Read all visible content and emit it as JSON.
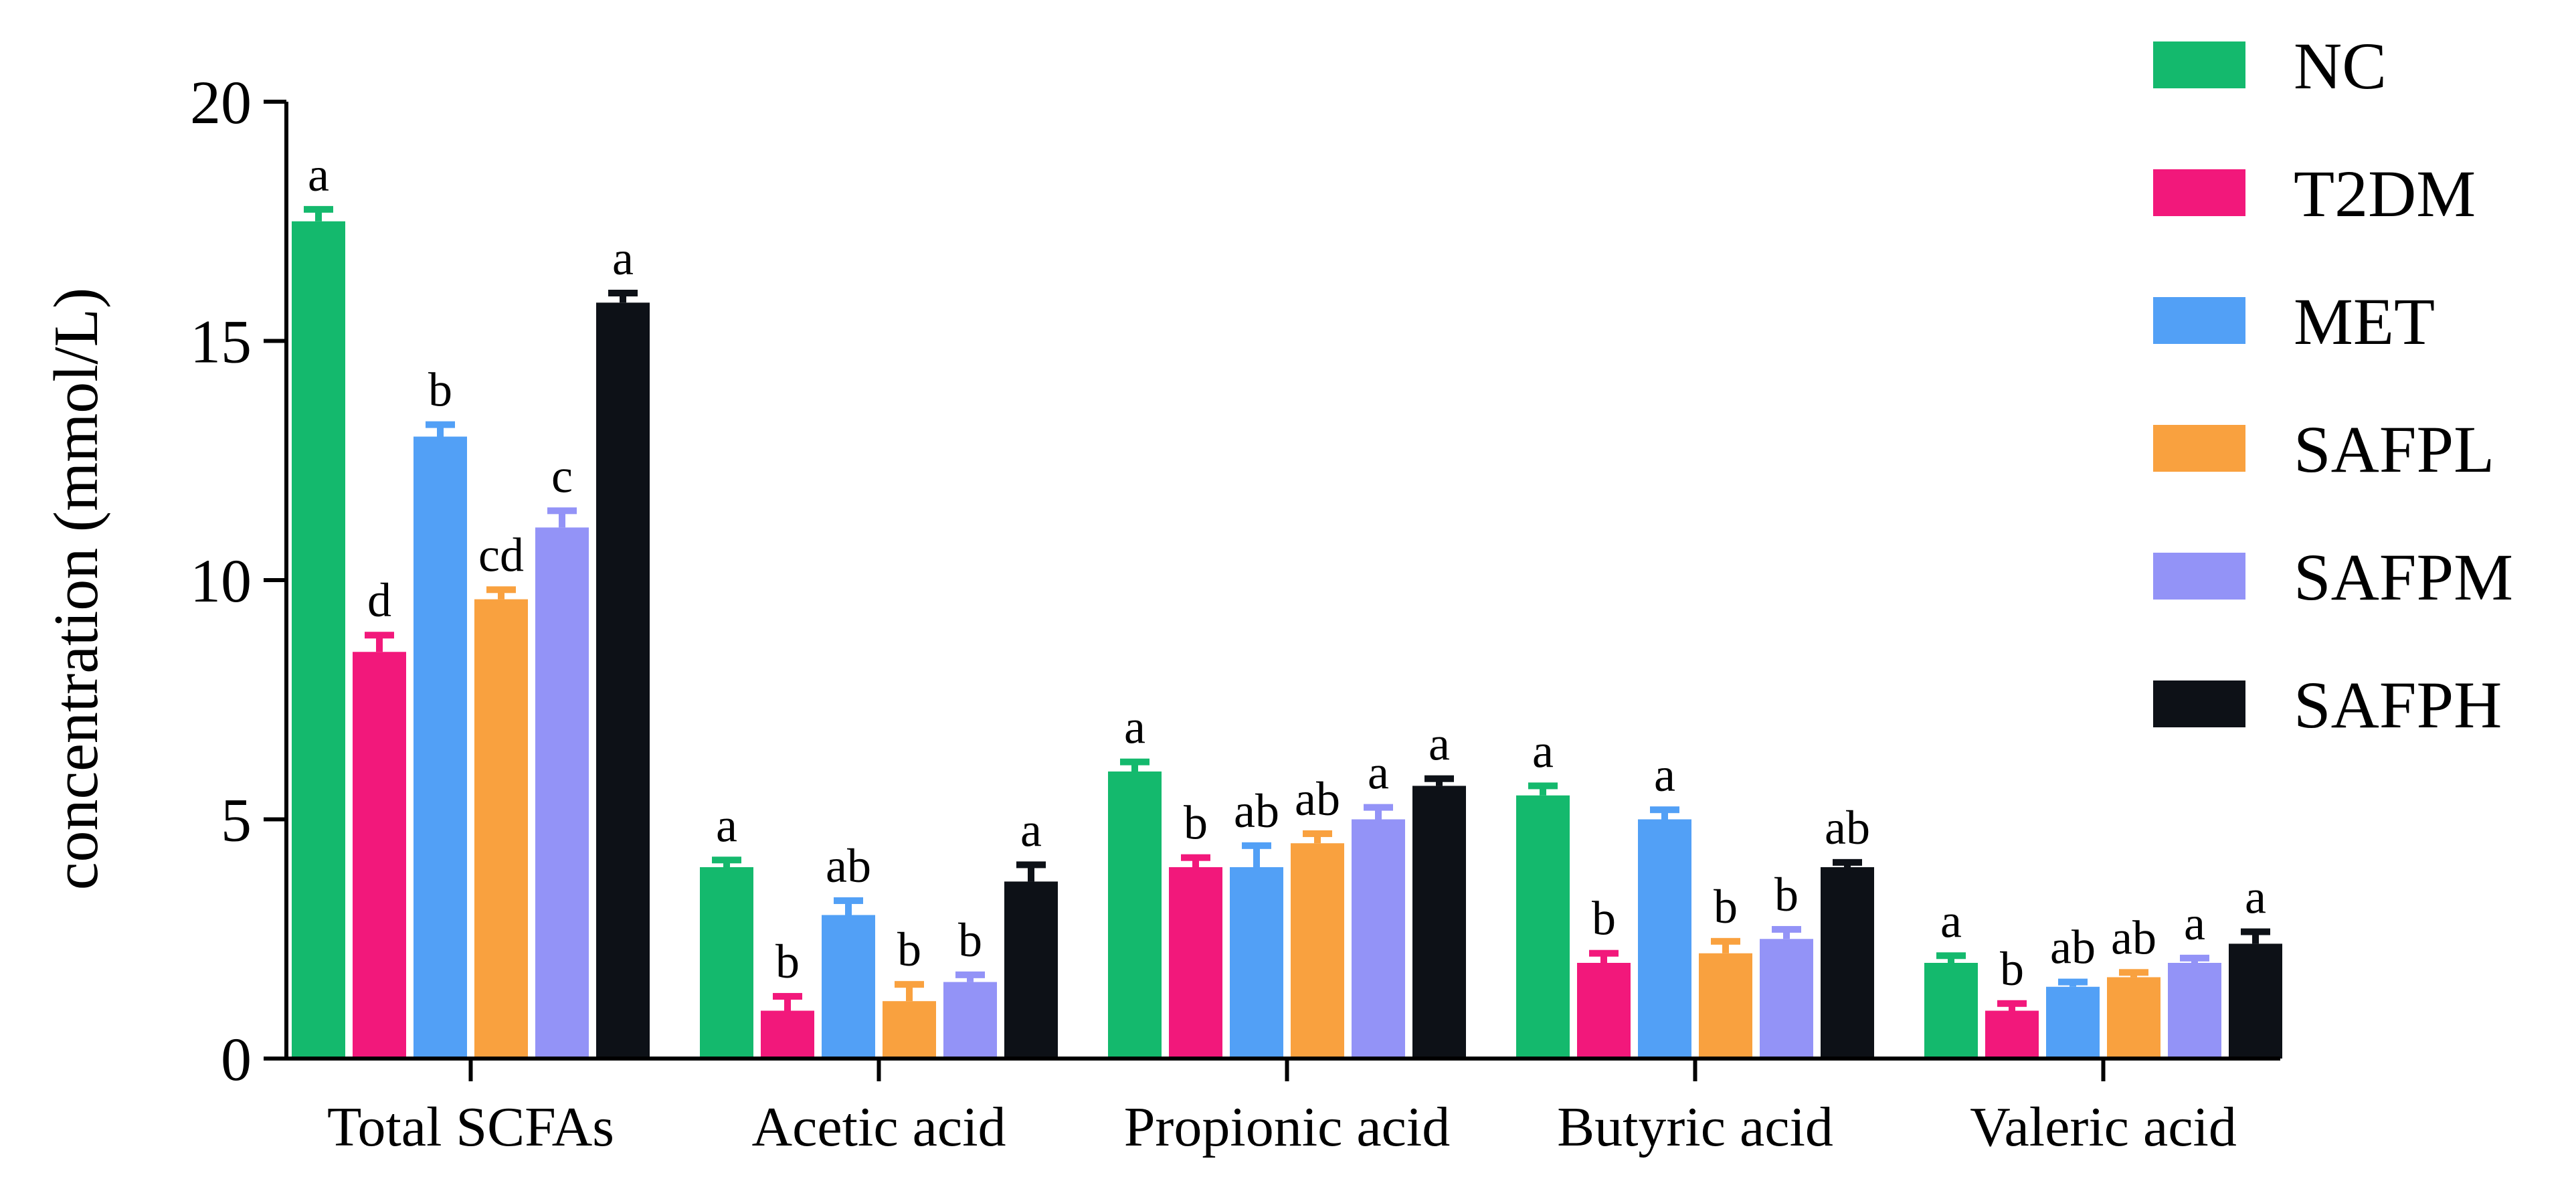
{
  "chart_data": {
    "type": "bar",
    "title": "",
    "xlabel": "",
    "ylabel": "concentration (mmol/L)",
    "ylim": [
      0,
      20
    ],
    "yticks": [
      0,
      5,
      10,
      15,
      20
    ],
    "categories": [
      "Total SCFAs",
      "Acetic acid",
      "Propionic acid",
      "Butyric acid",
      "Valeric acid"
    ],
    "legend_position": "right",
    "series": [
      {
        "name": "NC",
        "color": "#14b96d",
        "values": [
          17.5,
          4.0,
          6.0,
          5.5,
          2.0
        ],
        "errors": [
          0.25,
          0.15,
          0.2,
          0.2,
          0.15
        ],
        "labels": [
          "a",
          "a",
          "a",
          "a",
          "a"
        ]
      },
      {
        "name": "T2DM",
        "color": "#f2187b",
        "values": [
          8.5,
          1.0,
          4.0,
          2.0,
          1.0
        ],
        "errors": [
          0.35,
          0.3,
          0.2,
          0.2,
          0.15
        ],
        "labels": [
          "d",
          "b",
          "b",
          "b",
          "b"
        ]
      },
      {
        "name": "MET",
        "color": "#52a0f6",
        "values": [
          13.0,
          3.0,
          4.0,
          5.0,
          1.5
        ],
        "errors": [
          0.25,
          0.3,
          0.45,
          0.2,
          0.1
        ],
        "labels": [
          "b",
          "ab",
          "ab",
          "a",
          "ab"
        ]
      },
      {
        "name": "SAFPL",
        "color": "#f9a13f",
        "values": [
          9.6,
          1.2,
          4.5,
          2.2,
          1.7
        ],
        "errors": [
          0.2,
          0.35,
          0.2,
          0.25,
          0.1
        ],
        "labels": [
          "cd",
          "b",
          "ab",
          "b",
          "ab"
        ]
      },
      {
        "name": "SAFPM",
        "color": "#9393f7",
        "values": [
          11.1,
          1.6,
          5.0,
          2.5,
          2.0
        ],
        "errors": [
          0.35,
          0.15,
          0.25,
          0.2,
          0.1
        ],
        "labels": [
          "c",
          "b",
          "a",
          "b",
          "a"
        ]
      },
      {
        "name": "SAFPH",
        "color": "#0d1117",
        "values": [
          15.8,
          3.7,
          5.7,
          4.0,
          2.4
        ],
        "errors": [
          0.2,
          0.35,
          0.15,
          0.1,
          0.25
        ],
        "labels": [
          "a",
          "a",
          "a",
          "ab",
          "a"
        ]
      }
    ]
  }
}
